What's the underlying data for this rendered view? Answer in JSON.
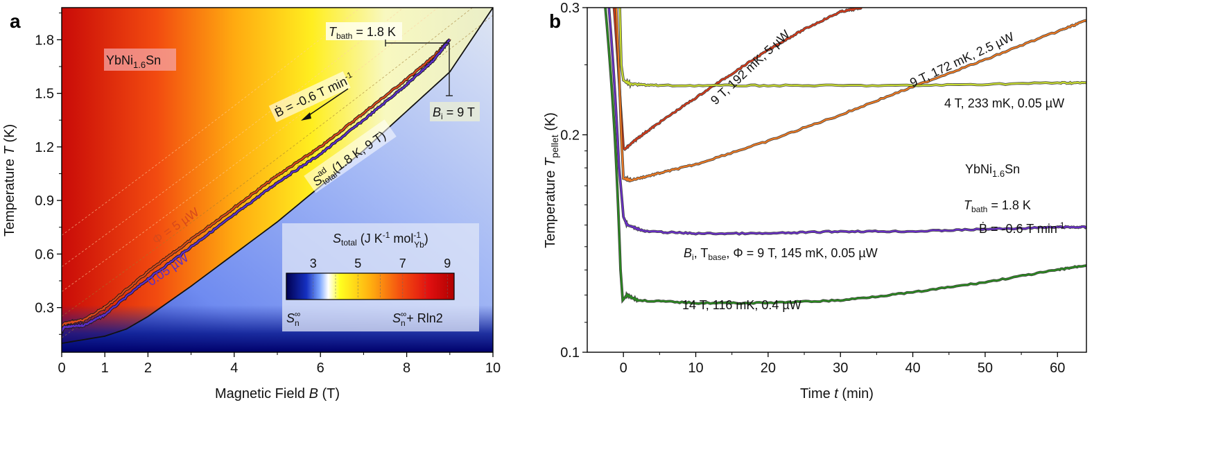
{
  "panels": {
    "a": {
      "letter": "a",
      "material_base": "YbNi",
      "material_sub": "1.6",
      "material_tail": "Sn",
      "tbath_T": "T",
      "tbath_sub": "bath",
      "tbath_val": " = 1.8 K",
      "bdot_label": "Ḃ = -0.6 T min",
      "bdot_sup": "-1",
      "bi_label": "B",
      "bi_sub": "i",
      "bi_val": " = 9 T",
      "phi_label": "Φ = 5 µW",
      "low_label": "0.05 µW",
      "sad_S": "S",
      "sad_sup": "ad",
      "sad_sub": "total",
      "sad_tail": "(1.8 K, 9 T)",
      "colorbar_title_S": "S",
      "colorbar_title_sub": "total",
      "colorbar_title_unit": " (J K",
      "colorbar_title_sup1": "-1",
      "colorbar_title_unit2": " mol",
      "colorbar_title_sup2": "-1",
      "colorbar_title_sub2": "Yb",
      "colorbar_title_close": ")",
      "colorbar_ticks": [
        "3",
        "5",
        "7",
        "9"
      ],
      "colorbar_left": "S",
      "colorbar_left_sub": "n",
      "colorbar_left_sup": "∞",
      "colorbar_right": "S",
      "colorbar_right_sub": "n",
      "colorbar_right_sup": "∞",
      "colorbar_right_tail": "+ Rln2"
    },
    "b": {
      "letter": "b",
      "material_base": "YbNi",
      "material_sub": "1.6",
      "material_tail": "Sn",
      "tbath_T": "T",
      "tbath_sub": "bath",
      "tbath_val": " = 1.8 K",
      "bdot_label": "Ḃ = -0.6 T min",
      "bdot_sup": "-1",
      "curve_labels": {
        "red": "9 T, 192 mK, 5 µW",
        "orange": "9 T, 172 mK, 2.5 µW",
        "yellow": "4 T, 233 mK, 0.05 µW",
        "purple_a": "B",
        "purple_b": "i",
        "purple_c": ", T",
        "purple_d": "base",
        "purple_e": ", Φ = 9 T, 145 mK, 0.05 µW",
        "green": "14 T, 116 mK, 0.4 µW"
      }
    }
  },
  "chart_data": [
    {
      "type": "line",
      "title": "",
      "xlabel": "Magnetic Field B (T)",
      "ylabel": "Temperature T (K)",
      "xlim": [
        0,
        10
      ],
      "ylim": [
        0.05,
        1.98
      ],
      "xticks": [
        "0",
        "1",
        "2",
        "4",
        "6",
        "8",
        "10"
      ],
      "xtick_values": [
        0,
        1,
        2,
        4,
        6,
        8,
        10
      ],
      "yticks": [
        "0.3",
        "0.6",
        "0.9",
        "1.2",
        "1.5",
        "1.8"
      ],
      "ytick_values": [
        0.3,
        0.6,
        0.9,
        1.2,
        1.5,
        1.8
      ],
      "background": "entropy colormap S_total (3 to 9 J/K/mol)",
      "series": [
        {
          "name": "Φ = 5 µW",
          "color": "#d84a1b",
          "x": [
            0,
            0.05,
            0.5,
            1,
            2,
            3,
            4,
            5,
            6,
            7,
            8,
            8.6,
            9
          ],
          "y": [
            0.19,
            0.21,
            0.23,
            0.3,
            0.5,
            0.68,
            0.86,
            1.04,
            1.2,
            1.39,
            1.58,
            1.7,
            1.8
          ]
        },
        {
          "name": "0.05 µW",
          "color": "#5b2fc9",
          "x": [
            0,
            0.05,
            0.5,
            1,
            2,
            3,
            4,
            5,
            6,
            7,
            8,
            8.6,
            9
          ],
          "y": [
            0.17,
            0.19,
            0.2,
            0.26,
            0.46,
            0.64,
            0.82,
            1.0,
            1.16,
            1.35,
            1.55,
            1.68,
            1.8
          ]
        },
        {
          "name": "S_total^ad(1.8 K, 9 T)",
          "color": "#111111",
          "x": [
            0,
            0.5,
            1,
            1.5,
            2,
            3,
            4,
            5,
            6,
            7,
            8,
            9,
            10
          ],
          "y": [
            0.1,
            0.12,
            0.14,
            0.18,
            0.25,
            0.42,
            0.6,
            0.78,
            0.98,
            1.18,
            1.4,
            1.62,
            1.98
          ]
        }
      ]
    },
    {
      "type": "line",
      "title": "",
      "xlabel": "Time t (min)",
      "ylabel": "Temperature T_pellet (K)",
      "xlim": [
        -5,
        64
      ],
      "ylim": [
        0.1,
        0.3
      ],
      "yscale": "log",
      "xticks": [
        "0",
        "10",
        "20",
        "30",
        "40",
        "50",
        "60"
      ],
      "xtick_values": [
        0,
        10,
        20,
        30,
        40,
        50,
        60
      ],
      "yticks": [
        "0.1",
        "0.2",
        "0.3"
      ],
      "ytick_values": [
        0.1,
        0.2,
        0.3
      ],
      "series": [
        {
          "name": "9 T, 192 mK, 5 µW",
          "color": "#d43a1a",
          "x": [
            -1.3,
            -0.4,
            0,
            0.2,
            2,
            5,
            10,
            15,
            20,
            25,
            30,
            33
          ],
          "y": [
            0.3,
            0.22,
            0.192,
            0.191,
            0.198,
            0.208,
            0.225,
            0.243,
            0.262,
            0.28,
            0.296,
            0.3
          ]
        },
        {
          "name": "9 T, 172 mK, 2.5 µW",
          "color": "#ef7a22",
          "x": [
            -1.0,
            -0.3,
            0,
            1,
            5,
            10,
            20,
            30,
            40,
            50,
            60,
            64
          ],
          "y": [
            0.3,
            0.2,
            0.174,
            0.173,
            0.177,
            0.182,
            0.196,
            0.213,
            0.233,
            0.254,
            0.278,
            0.288
          ]
        },
        {
          "name": "4 T, 233 mK, 0.05 µW",
          "color": "#c8dc30",
          "x": [
            -0.5,
            -0.3,
            0,
            1,
            5,
            20,
            40,
            60,
            64
          ],
          "y": [
            0.3,
            0.25,
            0.238,
            0.235,
            0.234,
            0.234,
            0.234,
            0.236,
            0.236
          ]
        },
        {
          "name": "B_i, T_base, Φ = 9 T, 145 mK, 0.05 µW",
          "color": "#6a2fc9",
          "x": [
            -2.0,
            -0.6,
            0,
            0.5,
            3,
            10,
            20,
            30,
            40,
            50,
            60,
            64
          ],
          "y": [
            0.3,
            0.18,
            0.154,
            0.15,
            0.147,
            0.146,
            0.146,
            0.147,
            0.147,
            0.148,
            0.149,
            0.149
          ]
        },
        {
          "name": "14 T, 116 mK, 0.4 µW",
          "color": "#2a8a1f",
          "x": [
            -2.5,
            -1.2,
            -0.4,
            -0.1,
            0.5,
            2,
            10,
            20,
            30,
            40,
            50,
            60,
            64
          ],
          "y": [
            0.3,
            0.2,
            0.13,
            0.118,
            0.12,
            0.118,
            0.117,
            0.117,
            0.118,
            0.121,
            0.125,
            0.13,
            0.132
          ]
        }
      ]
    }
  ]
}
